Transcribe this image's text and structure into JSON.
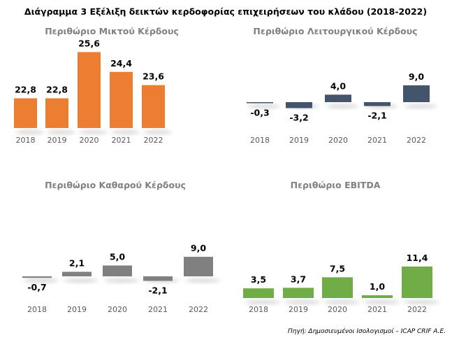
{
  "title": "Διάγραμμα 3 Εξέλιξη δεικτών κερδοφορίας επιχειρήσεων του κλάδου (2018-2022)",
  "source": "Πηγή: Δημοσιευμένοι Ισολογισμοί – ICAP CRIF A.E.",
  "chart_data": [
    {
      "type": "bar",
      "title": "Περιθώριο Μικτού Κέρδους",
      "categories": [
        "2018",
        "2019",
        "2020",
        "2021",
        "2022"
      ],
      "values": [
        22.8,
        22.8,
        25.6,
        24.4,
        23.6
      ],
      "value_labels": [
        "22,8",
        "22,8",
        "25,6",
        "24,4",
        "23,6"
      ],
      "ylim": [
        21,
        27
      ],
      "color": "#ed7d31",
      "grid": false
    },
    {
      "type": "bar",
      "title": "Περιθώριο Λειτουργικού Κέρδους",
      "categories": [
        "2018",
        "2019",
        "2020",
        "2021",
        "2022"
      ],
      "values": [
        -0.3,
        -3.2,
        4.0,
        -2.1,
        9.0
      ],
      "value_labels": [
        "-0,3",
        "-3,2",
        "4,0",
        "-2,1",
        "9,0"
      ],
      "ylim": [
        -15,
        17
      ],
      "color": "#44546a",
      "grid": false
    },
    {
      "type": "bar",
      "title": "Περιθώριο Καθαρού Κέρδους",
      "categories": [
        "2018",
        "2019",
        "2020",
        "2021",
        "2022"
      ],
      "values": [
        -0.7,
        2.1,
        5.0,
        -2.1,
        9.0
      ],
      "value_labels": [
        "-0,7",
        "2,1",
        "5,0",
        "-2,1",
        "9,0"
      ],
      "ylim": [
        -8,
        12
      ],
      "color": "#808080",
      "grid": false
    },
    {
      "type": "bar",
      "title": "Περιθώριο EBITDA",
      "categories": [
        "2018",
        "2019",
        "2020",
        "2021",
        "2022"
      ],
      "values": [
        3.5,
        3.7,
        7.5,
        1.0,
        11.4
      ],
      "value_labels": [
        "3,5",
        "3,7",
        "7,5",
        "1,0",
        "11,4"
      ],
      "ylim": [
        0,
        14
      ],
      "color": "#70ad47",
      "grid": false
    }
  ]
}
